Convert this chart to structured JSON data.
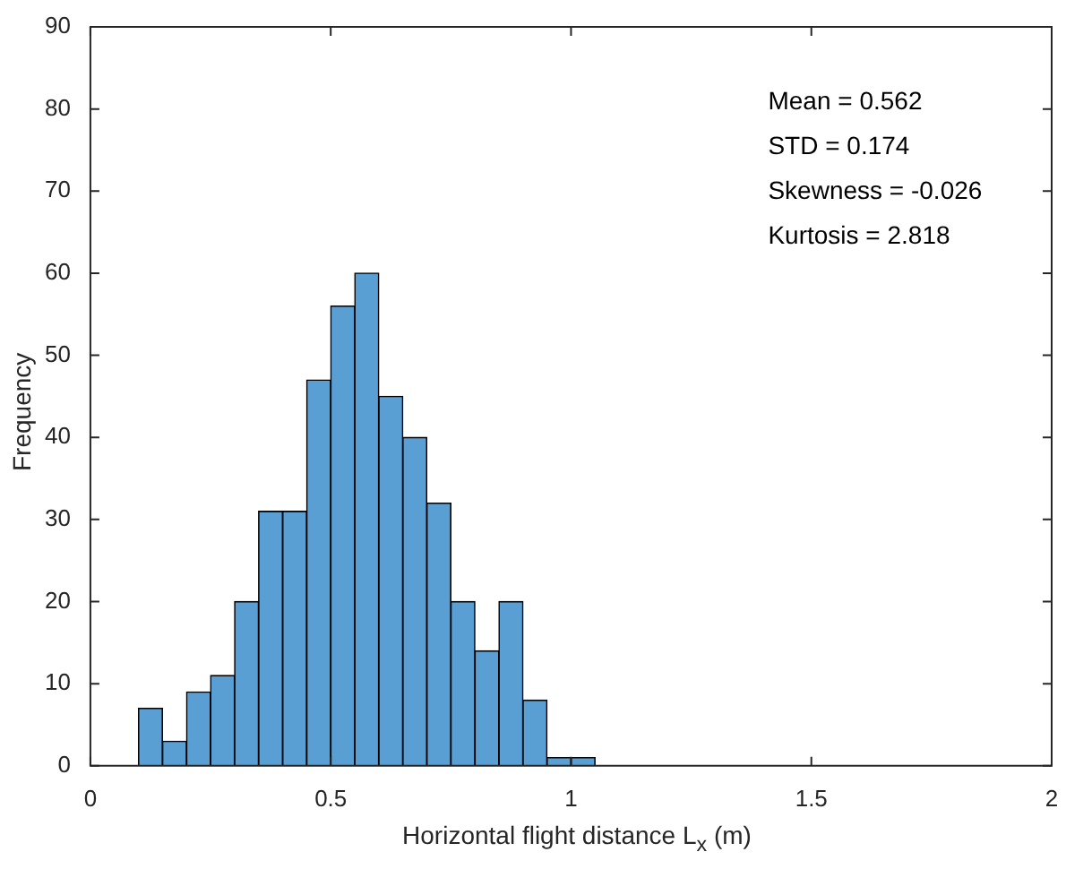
{
  "chart_data": {
    "type": "histogram",
    "xlabel": "Horizontal flight distance L$_{x}$ (m)",
    "ylabel": "Frequency",
    "bins": [
      0.1,
      0.15,
      0.2,
      0.25,
      0.3,
      0.35,
      0.4,
      0.45,
      0.5,
      0.55,
      0.6,
      0.65,
      0.7,
      0.75,
      0.8,
      0.85,
      0.9,
      0.95,
      1.0,
      1.05
    ],
    "values": [
      7,
      3,
      9,
      11,
      20,
      31,
      31,
      47,
      56,
      60,
      45,
      40,
      32,
      20,
      14,
      20,
      8,
      1,
      1
    ],
    "color": "#5a9fd4",
    "xlim": [
      0,
      2
    ],
    "xticks": [
      0,
      0.5,
      1,
      1.5,
      2
    ],
    "ylim": [
      0,
      90
    ],
    "yticks": [
      0,
      10,
      20,
      30,
      40,
      50,
      60,
      70,
      80,
      90
    ],
    "grid": false,
    "legend": false,
    "annotations": [
      "Mean = 0.562",
      "STD = 0.174",
      "Skewness = -0.026",
      "Kurtosis = 2.818"
    ]
  }
}
